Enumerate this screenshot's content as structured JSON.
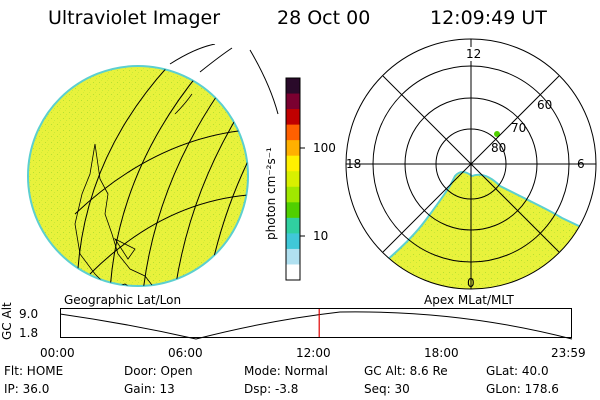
{
  "header": {
    "instrument": "Ultraviolet Imager",
    "date": "28 Oct 00",
    "time": "12:09:49 UT"
  },
  "left_map": {
    "caption": "Geographic Lat/Lon"
  },
  "right_map": {
    "caption": "Apex MLat/MLT",
    "mlt_labels": [
      "12",
      "18",
      "6",
      "0"
    ],
    "lat_labels": [
      "60",
      "70",
      "80"
    ]
  },
  "colorbar": {
    "unit_label": "photon cm⁻²s⁻¹",
    "tick_labels": [
      "100",
      "10"
    ],
    "colors": [
      "#2a0a2a",
      "#7a0030",
      "#c00000",
      "#ff6000",
      "#ffb000",
      "#fff000",
      "#d8f000",
      "#a0e800",
      "#50d000",
      "#30d0a0",
      "#40c8d8",
      "#b0e0f0",
      "#ffffff"
    ]
  },
  "timeline": {
    "axis_label": "GC Alt",
    "y_max": "9.0",
    "y_min": "1.8",
    "ticks": [
      "00:00",
      "06:00",
      "12:00",
      "18:00",
      "23:59"
    ],
    "current_hour": 12.15
  },
  "info": {
    "flt": "Flt: HOME",
    "ip": "IP: 36.0",
    "door": "Door: Open",
    "gain": "Gain: 13",
    "mode": "Mode: Normal",
    "dsp": "Dsp:    -3.8",
    "gc_alt": "GC Alt: 8.6 Re",
    "seq": "Seq: 30",
    "glat": "GLat:  40.0",
    "glon": "GLon: 178.6"
  },
  "colors": {
    "aurora_fill": "#e8f23c",
    "aurora_edge": "#5ccfd0",
    "indicator": "#e00000"
  }
}
